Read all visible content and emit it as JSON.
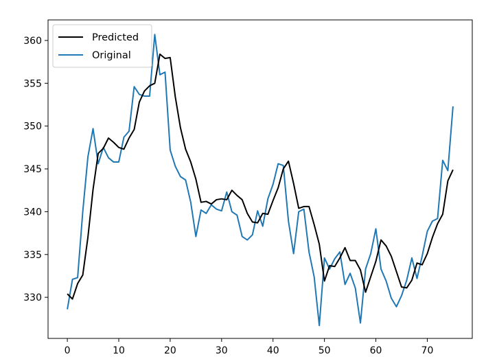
{
  "chart_data": {
    "type": "line",
    "title": "",
    "xlabel": "",
    "ylabel": "",
    "xlim": [
      -3.75,
      78.75
    ],
    "ylim": [
      325.2,
      362.4
    ],
    "xticks": [
      0,
      10,
      20,
      30,
      40,
      50,
      60,
      70
    ],
    "yticks": [
      330,
      335,
      340,
      345,
      350,
      355,
      360
    ],
    "grid": false,
    "legend_position": "top-left",
    "series": [
      {
        "name": "Predicted",
        "color": "#000000",
        "x": [
          0,
          1,
          2,
          3,
          4,
          5,
          6,
          7,
          8,
          9,
          10,
          11,
          12,
          13,
          14,
          15,
          16,
          17,
          18,
          19,
          20,
          21,
          22,
          23,
          24,
          25,
          26,
          27,
          28,
          29,
          30,
          31,
          32,
          33,
          34,
          35,
          36,
          37,
          38,
          39,
          40,
          41,
          42,
          43,
          44,
          45,
          46,
          47,
          48,
          49,
          50,
          51,
          52,
          53,
          54,
          55,
          56,
          57,
          58,
          59,
          60,
          61,
          62,
          63,
          64,
          65,
          66,
          67,
          68,
          69,
          70,
          71,
          72,
          73,
          74,
          75
        ],
        "values": [
          330.4,
          329.8,
          331.6,
          332.6,
          337.0,
          342.6,
          346.8,
          347.4,
          348.6,
          348.1,
          347.5,
          347.3,
          348.6,
          349.6,
          352.8,
          354.1,
          354.7,
          355.0,
          358.4,
          357.9,
          358.0,
          353.4,
          349.8,
          347.3,
          345.8,
          343.8,
          341.1,
          341.2,
          340.9,
          341.4,
          341.5,
          341.4,
          342.5,
          341.9,
          341.4,
          339.8,
          338.8,
          338.7,
          339.8,
          339.7,
          341.3,
          342.8,
          345.0,
          345.9,
          343.3,
          340.4,
          340.6,
          340.6,
          338.5,
          336.2,
          331.9,
          333.7,
          333.6,
          334.6,
          335.8,
          334.3,
          334.3,
          333.2,
          330.6,
          332.4,
          334.2,
          336.7,
          336.0,
          334.8,
          333.0,
          331.2,
          331.1,
          332.0,
          334.0,
          333.8,
          335.1,
          337.0,
          338.6,
          339.7,
          343.6,
          344.9
        ]
      },
      {
        "name": "Original",
        "color": "#1f77b4",
        "x": [
          0,
          1,
          2,
          3,
          4,
          5,
          6,
          7,
          8,
          9,
          10,
          11,
          12,
          13,
          14,
          15,
          16,
          17,
          18,
          19,
          20,
          21,
          22,
          23,
          24,
          25,
          26,
          27,
          28,
          29,
          30,
          31,
          32,
          33,
          34,
          35,
          36,
          37,
          38,
          39,
          40,
          41,
          42,
          43,
          44,
          45,
          46,
          47,
          48,
          49,
          50,
          51,
          52,
          53,
          54,
          55,
          56,
          57,
          58,
          59,
          60,
          61,
          62,
          63,
          64,
          65,
          66,
          67,
          68,
          69,
          70,
          71,
          72,
          73,
          74,
          75
        ],
        "values": [
          328.6,
          332.1,
          332.3,
          340.0,
          346.4,
          349.7,
          345.6,
          347.5,
          346.3,
          345.8,
          345.8,
          348.7,
          349.4,
          354.6,
          353.7,
          353.5,
          353.5,
          360.7,
          356.0,
          356.3,
          347.2,
          345.3,
          344.1,
          343.7,
          341.1,
          337.1,
          340.2,
          339.8,
          340.8,
          340.3,
          340.1,
          342.3,
          340.0,
          339.6,
          337.1,
          336.7,
          337.3,
          340.1,
          338.3,
          341.5,
          343.2,
          345.6,
          345.4,
          338.9,
          335.1,
          340.0,
          340.3,
          335.3,
          332.4,
          326.7,
          334.6,
          333.3,
          334.5,
          335.3,
          331.5,
          332.8,
          331.1,
          327.0,
          333.3,
          335.1,
          338.0,
          333.3,
          331.9,
          329.9,
          328.9,
          330.2,
          332.0,
          334.6,
          332.2,
          334.8,
          337.7,
          338.9,
          339.2,
          346.0,
          344.8,
          352.3
        ]
      }
    ]
  }
}
